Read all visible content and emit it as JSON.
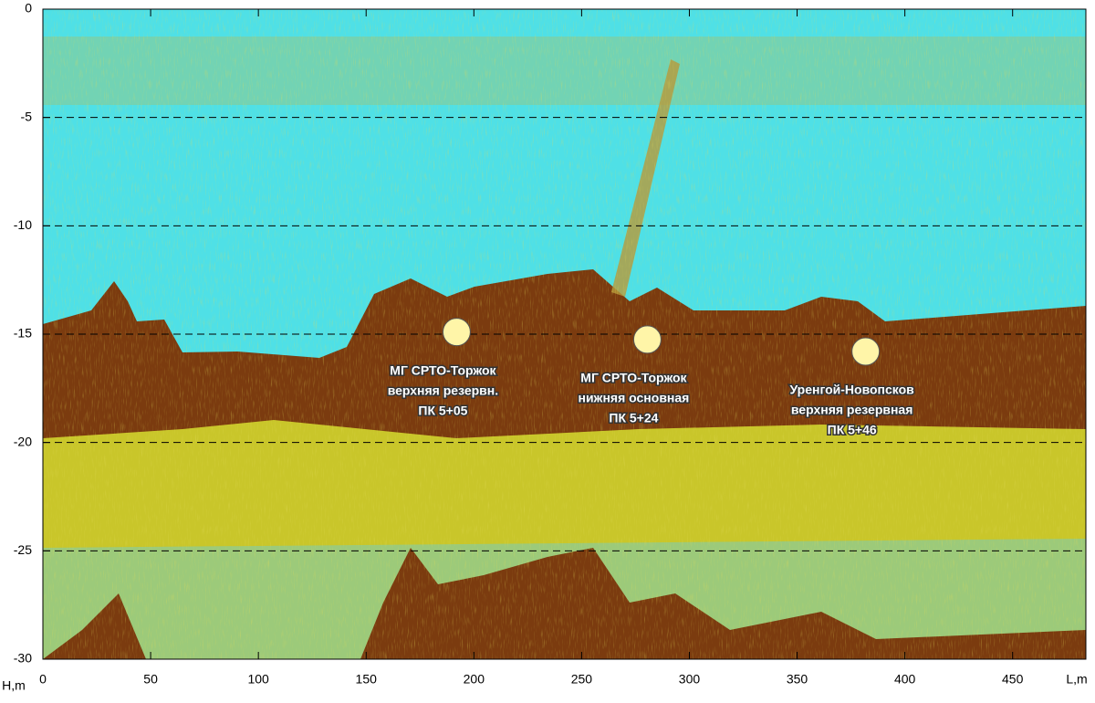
{
  "chart_data": {
    "type": "profile",
    "xlabel": "L,m",
    "ylabel": "H,m",
    "xlim": [
      0,
      484
    ],
    "ylim": [
      -30,
      0
    ],
    "xticks": [
      0,
      50,
      100,
      150,
      200,
      250,
      300,
      350,
      400,
      450
    ],
    "yticks": [
      0,
      -5,
      -10,
      -15,
      -20,
      -25,
      -30
    ],
    "grid": true,
    "markers": [
      {
        "x": 192,
        "y": -14.9,
        "color": "#fff5a8",
        "label": [
          "МГ СРТО-Торжок",
          "верхняя резервн.",
          "ПК 5+05"
        ]
      },
      {
        "x": 280.5,
        "y": -15.25,
        "color": "#fff5a8",
        "label": [
          "МГ СРТО-Торжок",
          "нижняя основная",
          "ПК 5+24"
        ]
      },
      {
        "x": 381.8,
        "y": -15.8,
        "color": "#fff5a8",
        "label": [
          "Уренгой-Новопсков",
          "верхняя резервная",
          "ПК 5+46"
        ]
      }
    ]
  }
}
